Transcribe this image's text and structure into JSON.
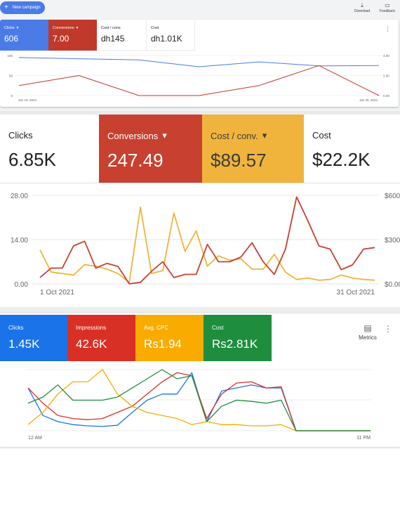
{
  "toolbar": {
    "new_campaign_label": "New campaign",
    "download_label": "Download",
    "feedback_label": "Feedback"
  },
  "panel1": {
    "scorecards": [
      {
        "label": "Clicks",
        "value": "606",
        "dropdown": true,
        "color": "#4a7be6"
      },
      {
        "label": "Conversions",
        "value": "7.00",
        "dropdown": true,
        "color": "#c0392b"
      },
      {
        "label": "Cost / conv.",
        "value": "dh145",
        "dropdown": false
      },
      {
        "label": "Cost",
        "value": "dh1.01K",
        "dropdown": false
      }
    ],
    "more_icon": "more-vert-icon"
  },
  "panel2": {
    "scorecards": [
      {
        "label": "Clicks",
        "value": "6.85K",
        "dropdown": false
      },
      {
        "label": "Conversions",
        "value": "247.49",
        "dropdown": true,
        "color": "#c8402f"
      },
      {
        "label": "Cost / conv.",
        "value": "$89.57",
        "dropdown": true,
        "color": "#f0b43c"
      },
      {
        "label": "Cost",
        "value": "$22.2K",
        "dropdown": false
      }
    ]
  },
  "panel3": {
    "scorecards": [
      {
        "label": "Clicks",
        "value": "1.45K",
        "color": "#1a73e8"
      },
      {
        "label": "Impressions",
        "value": "42.6K",
        "color": "#d93025"
      },
      {
        "label": "Avg. CPC",
        "value": "Rs1.94",
        "color": "#f9ab00"
      },
      {
        "label": "Cost",
        "value": "Rs2.81K",
        "color": "#1e8e3e"
      }
    ],
    "metrics_label": "Metrics",
    "metrics_icon": "add-chart-icon",
    "more_icon": "more-vert-icon"
  },
  "chart_data": [
    {
      "type": "line",
      "x_labels": [
        "Jan 19, 2024",
        "Jan 25, 2024"
      ],
      "left_ticks": [
        "100",
        "50",
        "0"
      ],
      "right_ticks": [
        "4.00",
        "2.00",
        "0.00"
      ],
      "ylim_left": [
        0,
        100
      ],
      "ylim_right": [
        0,
        4
      ],
      "series": [
        {
          "name": "Clicks",
          "axis": "left",
          "color": "#4a7be6",
          "values": [
            95,
            92,
            89,
            72,
            84,
            74,
            75
          ]
        },
        {
          "name": "Conversions",
          "axis": "right",
          "color": "#c0392b",
          "values": [
            1,
            2,
            0,
            0,
            1,
            3,
            0
          ]
        }
      ]
    },
    {
      "type": "line",
      "x_labels": [
        "1 Oct 2021",
        "31 Oct 2021"
      ],
      "left_ticks": [
        "28.00",
        "14.00",
        "0.00"
      ],
      "right_ticks": [
        "$600",
        "$300",
        "$0.00"
      ],
      "ylim_left": [
        0,
        28
      ],
      "ylim_right": [
        0,
        600
      ],
      "series": [
        {
          "name": "Conversions",
          "axis": "left",
          "color": "#c8402f",
          "values": [
            2,
            5,
            5,
            12,
            13.5,
            5,
            6.5,
            5.5,
            0,
            0.5,
            4,
            7,
            2,
            3,
            3,
            12.5,
            7,
            7,
            8.5,
            13,
            7,
            3,
            11,
            27.5,
            20,
            12,
            11,
            4.5,
            6,
            11,
            11.5
          ]
        },
        {
          "name": "Cost / conv.",
          "axis": "right",
          "color": "#f0b43c",
          "values": [
            230,
            80,
            70,
            60,
            130,
            120,
            100,
            70,
            10,
            520,
            70,
            90,
            480,
            220,
            360,
            120,
            190,
            160,
            170,
            100,
            100,
            200,
            80,
            30,
            40,
            25,
            30,
            60,
            40,
            30,
            25
          ]
        }
      ]
    },
    {
      "type": "line",
      "x_labels": [
        "12 AM",
        "11 PM"
      ],
      "ylim": [
        0,
        100
      ],
      "series": [
        {
          "name": "Clicks",
          "color": "#1a73e8",
          "values": [
            70,
            25,
            15,
            10,
            8,
            7,
            9,
            30,
            50,
            60,
            60,
            95,
            15,
            65,
            70,
            75,
            70,
            70,
            0,
            0,
            0,
            0,
            0,
            0
          ]
        },
        {
          "name": "Impressions",
          "color": "#d93025",
          "values": [
            70,
            45,
            25,
            20,
            18,
            20,
            30,
            40,
            60,
            80,
            95,
            90,
            20,
            60,
            78,
            80,
            70,
            72,
            0,
            0,
            0,
            0,
            0,
            0
          ]
        },
        {
          "name": "Avg. CPC",
          "color": "#f9ab00",
          "values": [
            10,
            30,
            60,
            80,
            80,
            100,
            60,
            40,
            30,
            25,
            20,
            10,
            15,
            10,
            10,
            8,
            8,
            10,
            0,
            0,
            0,
            0,
            0,
            0
          ]
        },
        {
          "name": "Cost",
          "color": "#1e8e3e",
          "values": [
            45,
            55,
            75,
            50,
            50,
            50,
            55,
            70,
            85,
            100,
            85,
            90,
            15,
            40,
            50,
            48,
            45,
            50,
            0,
            0,
            0,
            0,
            0,
            0
          ]
        }
      ]
    }
  ]
}
